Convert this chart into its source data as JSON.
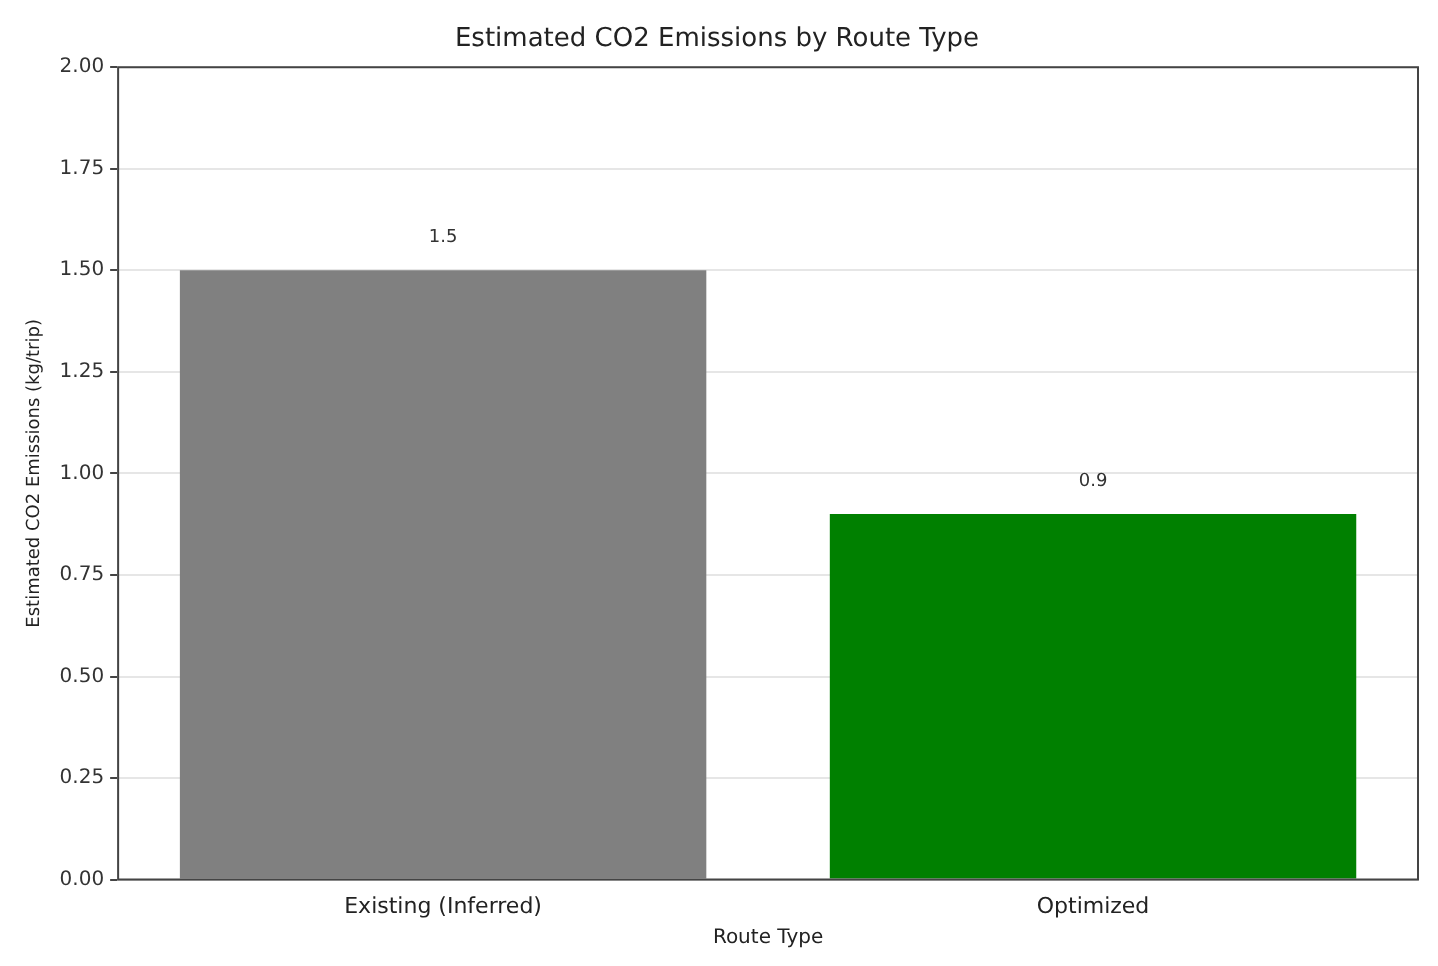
{
  "chart_data": {
    "type": "bar",
    "title": "Estimated CO2 Emissions by Route Type",
    "xlabel": "Route Type",
    "ylabel": "Estimated CO2 Emissions (kg/trip)",
    "categories": [
      "Existing (Inferred)",
      "Optimized"
    ],
    "values": [
      1.5,
      0.9
    ],
    "colors": [
      "#808080",
      "#008000"
    ],
    "ylim": [
      0,
      2
    ],
    "yticks": [
      {
        "value": 0,
        "label": "0.00"
      },
      {
        "value": 0.25,
        "label": "0.25"
      },
      {
        "value": 0.5,
        "label": "0.50"
      },
      {
        "value": 0.75,
        "label": "0.75"
      },
      {
        "value": 1,
        "label": "1.00"
      },
      {
        "value": 1.25,
        "label": "1.25"
      },
      {
        "value": 1.5,
        "label": "1.50"
      },
      {
        "value": 1.75,
        "label": "1.75"
      },
      {
        "value": 2,
        "label": "2.00"
      }
    ],
    "grid": "y",
    "data_labels": true,
    "legend": false
  }
}
